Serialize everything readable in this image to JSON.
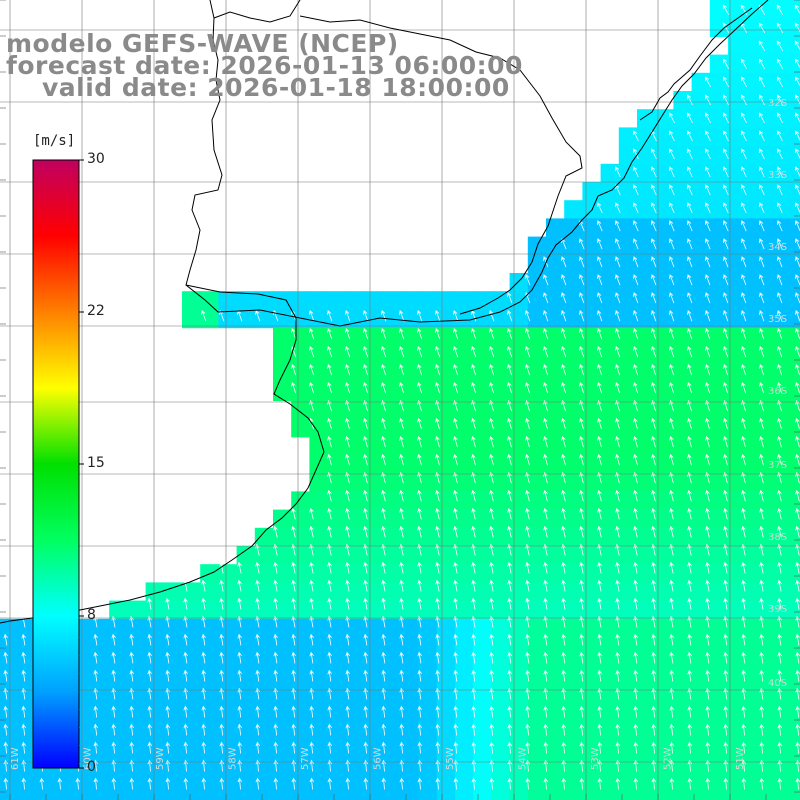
{
  "title": {
    "line1": "modelo GEFS-WAVE (NCEP)",
    "line2": "forecast date: 2026-01-13 06:00:00",
    "line3": "valid date: 2026-01-18 18:00:00"
  },
  "colorbar": {
    "unit": "[m/s]",
    "ticks": [
      "30",
      "22",
      "15",
      "8",
      "0"
    ],
    "stops": [
      "#0000ff",
      "#00a0ff",
      "#00ffff",
      "#00ff60",
      "#00e000",
      "#ffff00",
      "#ff8000",
      "#ff0000",
      "#c00060"
    ]
  },
  "grid": {
    "lat_labels": [
      "32S",
      "33S",
      "34S",
      "35S",
      "36S",
      "37S",
      "38S",
      "39S",
      "40S"
    ],
    "lon_labels": [
      "61W",
      "60W",
      "59W",
      "58W",
      "57W",
      "56W",
      "55W",
      "54W",
      "53W",
      "52W",
      "51W"
    ]
  },
  "field": {
    "variable": "wind speed and direction",
    "unit": "m/s",
    "range": [
      0,
      30
    ],
    "zones": [
      {
        "region": "northeast coast",
        "speed": 6
      },
      {
        "region": "central band",
        "speed": 11
      },
      {
        "region": "southwest",
        "speed": 5
      },
      {
        "region": "southeast",
        "speed": 10
      }
    ]
  },
  "colors": {
    "land": "#ffffff",
    "coastline": "#000000",
    "gridline": "#777777",
    "arrow": "#ffffff",
    "title": "#8a8a8a"
  }
}
